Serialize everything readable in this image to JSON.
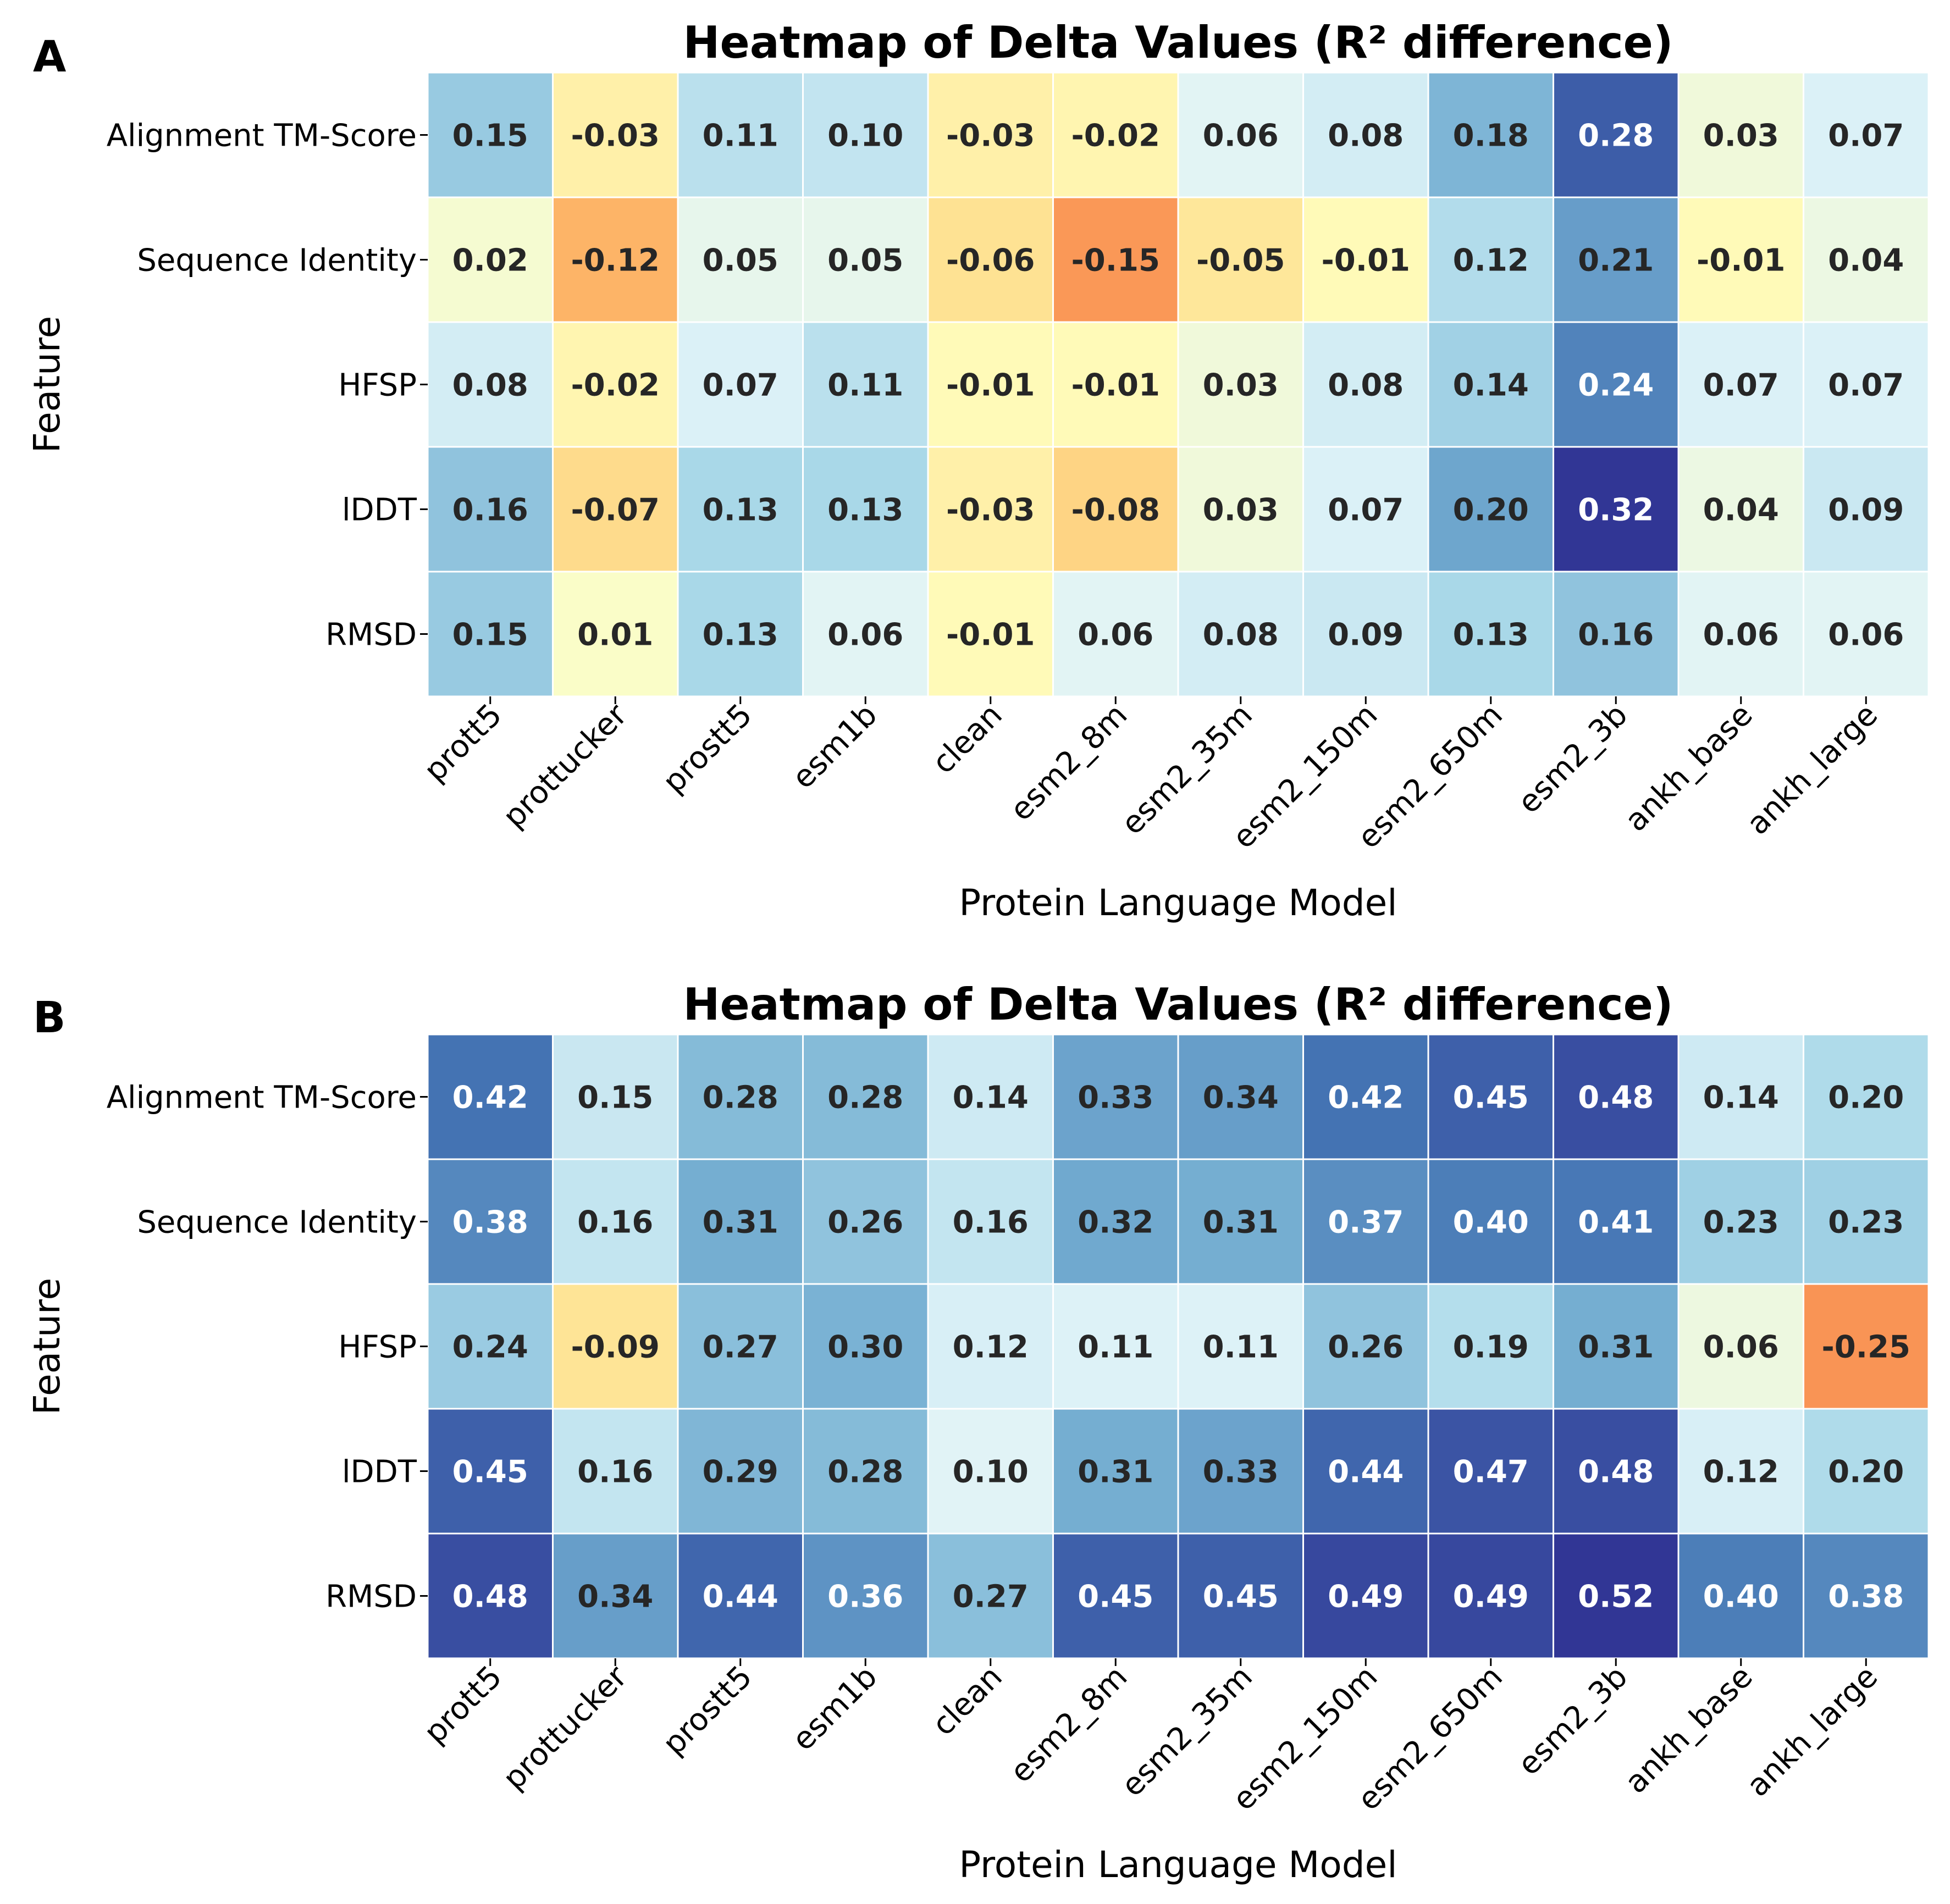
{
  "chart_data": [
    {
      "panel": "A",
      "type": "heatmap",
      "title": "Heatmap of Delta Values (R² difference)",
      "xlabel": "Protein Language Model",
      "ylabel": "Feature",
      "x": [
        "prott5",
        "prottucker",
        "prostt5",
        "esm1b",
        "clean",
        "esm2_8m",
        "esm2_35m",
        "esm2_150m",
        "esm2_650m",
        "esm2_3b",
        "ankh_base",
        "ankh_large"
      ],
      "y": [
        "Alignment TM-Score",
        "Sequence Identity",
        "HFSP",
        "lDDT",
        "RMSD"
      ],
      "values": [
        [
          0.15,
          -0.03,
          0.11,
          0.1,
          -0.03,
          -0.02,
          0.06,
          0.08,
          0.18,
          0.28,
          0.03,
          0.07
        ],
        [
          0.02,
          -0.12,
          0.05,
          0.05,
          -0.06,
          -0.15,
          -0.05,
          -0.01,
          0.12,
          0.21,
          -0.01,
          0.04
        ],
        [
          0.08,
          -0.02,
          0.07,
          0.11,
          -0.01,
          -0.01,
          0.03,
          0.08,
          0.14,
          0.24,
          0.07,
          0.07
        ],
        [
          0.16,
          -0.07,
          0.13,
          0.13,
          -0.03,
          -0.08,
          0.03,
          0.07,
          0.2,
          0.32,
          0.04,
          0.09
        ],
        [
          0.15,
          0.01,
          0.13,
          0.06,
          -0.01,
          0.06,
          0.08,
          0.09,
          0.13,
          0.16,
          0.06,
          0.06
        ]
      ],
      "labels": [
        [
          "0.15",
          "-0.03",
          "0.11",
          "0.10",
          "-0.03",
          "-0.02",
          "0.06",
          "0.08",
          "0.18",
          "0.28",
          "0.03",
          "0.07"
        ],
        [
          "0.02",
          "-0.12",
          "0.05",
          "0.05",
          "-0.06",
          "-0.15",
          "-0.05",
          "-0.01",
          "0.12",
          "0.21",
          "-0.01",
          "0.04"
        ],
        [
          "0.08",
          "-0.02",
          "0.07",
          "0.11",
          "-0.01",
          "-0.01",
          "0.03",
          "0.08",
          "0.14",
          "0.24",
          "0.07",
          "0.07"
        ],
        [
          "0.16",
          "-0.07",
          "0.13",
          "0.13",
          "-0.03",
          "-0.08",
          "0.03",
          "0.07",
          "0.20",
          "0.32",
          "0.04",
          "0.09"
        ],
        [
          "0.15",
          "0.01",
          "0.13",
          "0.06",
          "-0.01",
          "0.06",
          "0.08",
          "0.09",
          "0.13",
          "0.16",
          "0.06",
          "0.06"
        ]
      ],
      "colormap": "RdYlBu",
      "color_range": [
        -0.32,
        0.32
      ],
      "annotations": true,
      "grid_lines_color": "#ffffff"
    },
    {
      "panel": "B",
      "type": "heatmap",
      "title": "Heatmap of Delta Values (R² difference)",
      "xlabel": "Protein Language Model",
      "ylabel": "Feature",
      "x": [
        "prott5",
        "prottucker",
        "prostt5",
        "esm1b",
        "clean",
        "esm2_8m",
        "esm2_35m",
        "esm2_150m",
        "esm2_650m",
        "esm2_3b",
        "ankh_base",
        "ankh_large"
      ],
      "y": [
        "Alignment TM-Score",
        "Sequence Identity",
        "HFSP",
        "lDDT",
        "RMSD"
      ],
      "values": [
        [
          0.42,
          0.15,
          0.28,
          0.28,
          0.14,
          0.33,
          0.34,
          0.42,
          0.45,
          0.48,
          0.14,
          0.2
        ],
        [
          0.38,
          0.16,
          0.31,
          0.26,
          0.16,
          0.32,
          0.31,
          0.37,
          0.4,
          0.41,
          0.23,
          0.23
        ],
        [
          0.24,
          -0.09,
          0.27,
          0.3,
          0.12,
          0.11,
          0.11,
          0.26,
          0.19,
          0.31,
          0.06,
          -0.25
        ],
        [
          0.45,
          0.16,
          0.29,
          0.28,
          0.1,
          0.31,
          0.33,
          0.44,
          0.47,
          0.48,
          0.12,
          0.2
        ],
        [
          0.48,
          0.34,
          0.44,
          0.36,
          0.27,
          0.45,
          0.45,
          0.49,
          0.49,
          0.52,
          0.4,
          0.38
        ]
      ],
      "labels": [
        [
          "0.42",
          "0.15",
          "0.28",
          "0.28",
          "0.14",
          "0.33",
          "0.34",
          "0.42",
          "0.45",
          "0.48",
          "0.14",
          "0.20"
        ],
        [
          "0.38",
          "0.16",
          "0.31",
          "0.26",
          "0.16",
          "0.32",
          "0.31",
          "0.37",
          "0.40",
          "0.41",
          "0.23",
          "0.23"
        ],
        [
          "0.24",
          "-0.09",
          "0.27",
          "0.30",
          "0.12",
          "0.11",
          "0.11",
          "0.26",
          "0.19",
          "0.31",
          "0.06",
          "-0.25"
        ],
        [
          "0.45",
          "0.16",
          "0.29",
          "0.28",
          "0.10",
          "0.31",
          "0.33",
          "0.44",
          "0.47",
          "0.48",
          "0.12",
          "0.20"
        ],
        [
          "0.48",
          "0.34",
          "0.44",
          "0.36",
          "0.27",
          "0.45",
          "0.45",
          "0.49",
          "0.49",
          "0.52",
          "0.40",
          "0.38"
        ]
      ],
      "colormap": "RdYlBu",
      "color_range": [
        -0.52,
        0.52
      ],
      "annotations": true,
      "grid_lines_color": "#ffffff"
    }
  ]
}
